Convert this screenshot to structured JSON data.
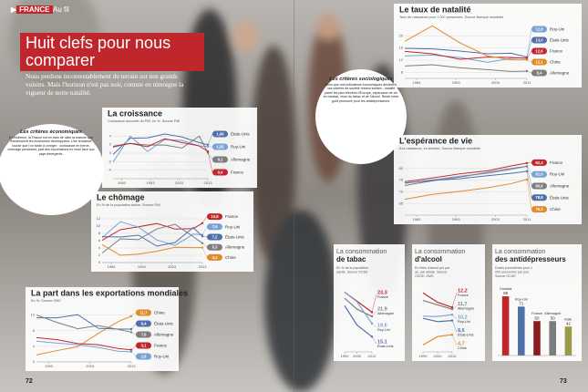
{
  "header": {
    "kicker": "FRANCE",
    "section": "Au fil",
    "title": "Huit clefs pour nous comparer",
    "intro": "Nous perdons incontestablement du terrain sur nos grands voisins. Mais l'horizon n'est pas noir, comme en témoigne la vigueur de notre natalité."
  },
  "sidebars": [
    {
      "title": "Les critères économiques",
      "body": "A l'évidence, la France est en train de rater la marche que franchissent les économies développées. Une tendance lourde que l'on tarde à corriger : croissance en berne, chômage persistant, part des exportations en recul face aux pays émergents."
    },
    {
      "title": "Les critères sociologiques",
      "body": "Alors que nos indicateurs économiques déclinent, nos critères de société restent solides : natalité parmi les plus élevées d'Europe, espérance de vie en hausse, recul du tabac et de l'alcool. Reste notre goût prononcé pour les antidépresseurs."
    }
  ],
  "footer": {
    "left_page": "72",
    "right_page": "73"
  },
  "chart_data": [
    {
      "type": "line",
      "title": "La croissance",
      "subtitle": "Croissance annuelle du PIB, en %. Source FMI",
      "x": [
        1980,
        1986,
        1992,
        1998,
        2004,
        2010,
        2013
      ],
      "xlim": [
        1980,
        2013
      ],
      "xticks": [
        1983,
        1993,
        2003,
        2013
      ],
      "ylim": [
        -6,
        6
      ],
      "yticks": [
        -4,
        -2,
        0,
        2,
        4
      ],
      "grid": true,
      "series": [
        {
          "name": "États-Unis",
          "color": "#4f6fa8",
          "values": [
            -0.3,
            3.5,
            3.6,
            4.5,
            3.8,
            2.5,
            1.96
          ],
          "value_labels": [
            null,
            null,
            null,
            null,
            null,
            null,
            "1,96"
          ]
        },
        {
          "name": "Roy-Uni",
          "color": "#7aa0d6",
          "values": [
            -2.1,
            4.0,
            0.4,
            3.2,
            3.0,
            1.7,
            1.55
          ],
          "value_labels": [
            null,
            null,
            null,
            null,
            null,
            null,
            "1,55"
          ]
        },
        {
          "name": "Allemagne",
          "color": "#7d7d7d",
          "values": [
            1.4,
            2.3,
            1.9,
            1.9,
            1.2,
            4.0,
            0.1
          ],
          "value_labels": [
            null,
            null,
            null,
            null,
            null,
            null,
            "0,1"
          ]
        },
        {
          "name": "France",
          "color": "#c0272d",
          "values": [
            1.6,
            2.3,
            1.5,
            3.4,
            2.5,
            1.7,
            0.4
          ],
          "value_labels": [
            null,
            null,
            null,
            null,
            null,
            null,
            "0,4"
          ]
        }
      ]
    },
    {
      "type": "line",
      "title": "Le chômage",
      "subtitle": "En % de la population active. Source FMI",
      "x": [
        1980,
        1986,
        1992,
        1998,
        2004,
        2010,
        2013
      ],
      "xlim": [
        1980,
        2013
      ],
      "xticks": [
        1983,
        1993,
        2003,
        2013
      ],
      "ylim": [
        0,
        14
      ],
      "yticks": [
        0,
        2,
        4,
        6,
        8,
        10,
        12
      ],
      "grid": true,
      "series": [
        {
          "name": "France",
          "color": "#c0272d",
          "values": [
            6.1,
            9.0,
            9.8,
            10.7,
            9.2,
            9.3,
            10.8
          ],
          "value_labels": [
            null,
            null,
            null,
            null,
            null,
            null,
            "10,8"
          ]
        },
        {
          "name": "Roy-Uni",
          "color": "#7aa0d6",
          "values": [
            6.8,
            11.2,
            9.7,
            6.2,
            4.7,
            7.8,
            7.6
          ],
          "value_labels": [
            null,
            null,
            null,
            null,
            null,
            null,
            "7,6"
          ]
        },
        {
          "name": "États-Unis",
          "color": "#4f6fa8",
          "values": [
            7.1,
            7.0,
            7.5,
            4.5,
            5.5,
            9.6,
            7.2
          ],
          "value_labels": [
            null,
            null,
            null,
            null,
            null,
            null,
            "7,2"
          ]
        },
        {
          "name": "Allemagne",
          "color": "#7d7d7d",
          "values": [
            2.6,
            6.5,
            6.3,
            9.2,
            10.5,
            7.1,
            5.3
          ],
          "value_labels": [
            null,
            null,
            null,
            null,
            null,
            null,
            "5,3"
          ]
        },
        {
          "name": "Chine",
          "color": "#e08a2c",
          "values": [
            4.9,
            2.0,
            2.3,
            3.1,
            4.2,
            4.1,
            4.1
          ],
          "value_labels": [
            null,
            null,
            null,
            null,
            null,
            null,
            "4,1"
          ]
        }
      ]
    },
    {
      "type": "line",
      "title": "La part dans les exportations mondiales",
      "subtitle": "En %. Source OMC",
      "x": [
        1990,
        1995,
        2000,
        2005,
        2010,
        2013
      ],
      "xlim": [
        1990,
        2013
      ],
      "xticks": [
        1993,
        2003,
        2013
      ],
      "ylim": [
        0,
        14
      ],
      "yticks": [
        0,
        4,
        8,
        12
      ],
      "grid": true,
      "series": [
        {
          "name": "Chine",
          "color": "#e08a2c",
          "values": [
            1.8,
            2.9,
            3.9,
            7.3,
            10.4,
            11.7
          ],
          "value_labels": [
            null,
            null,
            null,
            null,
            null,
            "11,7"
          ]
        },
        {
          "name": "États-Unis",
          "color": "#4f6fa8",
          "values": [
            11.3,
            11.3,
            12.1,
            8.6,
            8.4,
            8.4
          ],
          "value_labels": [
            null,
            null,
            null,
            null,
            null,
            "8,4"
          ]
        },
        {
          "name": "Allemagne",
          "color": "#7d7d7d",
          "values": [
            12.0,
            10.1,
            8.5,
            9.3,
            8.3,
            7.6
          ],
          "value_labels": [
            null,
            null,
            null,
            null,
            null,
            "7,6"
          ]
        },
        {
          "name": "France",
          "color": "#c0272d",
          "values": [
            6.2,
            5.7,
            4.7,
            4.4,
            3.4,
            3.1
          ],
          "value_labels": [
            null,
            null,
            null,
            null,
            null,
            "3,1"
          ]
        },
        {
          "name": "Roy-Uni",
          "color": "#7aa0d6",
          "values": [
            5.3,
            4.8,
            4.4,
            3.7,
            2.7,
            2.6
          ],
          "value_labels": [
            null,
            null,
            null,
            null,
            null,
            "2,6"
          ]
        }
      ]
    },
    {
      "type": "line",
      "title": "Le taux de natalité",
      "subtitle": "Taux de naissance pour 1 000 personnes. Source Banque mondiale",
      "x": [
        1980,
        1987,
        1994,
        2001,
        2007,
        2011
      ],
      "xlim": [
        1980,
        2011
      ],
      "xticks": [
        1983,
        1993,
        2003,
        2011
      ],
      "ylim": [
        6,
        24
      ],
      "yticks": [
        8,
        12,
        16,
        20
      ],
      "grid": true,
      "series": [
        {
          "name": "Roy-Uni",
          "color": "#7aa0d6",
          "values": [
            13.4,
            13.7,
            12.9,
            11.3,
            12.6,
            12.8
          ],
          "value_labels": [
            null,
            null,
            null,
            null,
            null,
            "12,8"
          ]
        },
        {
          "name": "États-Unis",
          "color": "#4f6fa8",
          "values": [
            15.9,
            15.7,
            15.0,
            14.1,
            14.3,
            13.0
          ],
          "value_labels": [
            null,
            null,
            null,
            null,
            null,
            "13,0"
          ]
        },
        {
          "name": "France",
          "color": "#c0272d",
          "values": [
            14.9,
            14.1,
            12.3,
            13.0,
            12.9,
            12.6
          ],
          "value_labels": [
            null,
            null,
            null,
            null,
            null,
            "12,6"
          ]
        },
        {
          "name": "Chine",
          "color": "#e08a2c",
          "values": [
            18.2,
            23.3,
            17.7,
            13.4,
            12.1,
            12.1
          ],
          "value_labels": [
            null,
            null,
            null,
            null,
            null,
            "12,1"
          ]
        },
        {
          "name": "Allemagne",
          "color": "#7d7d7d",
          "values": [
            10.1,
            10.5,
            9.5,
            8.9,
            8.3,
            8.4
          ],
          "value_labels": [
            null,
            null,
            null,
            null,
            null,
            "8,4"
          ]
        }
      ]
    },
    {
      "type": "line",
      "title": "L'espérance de vie",
      "subtitle": "A la naissance, en années. Source Banque mondiale",
      "x": [
        1980,
        1987,
        1994,
        2001,
        2007,
        2011
      ],
      "xlim": [
        1980,
        2011
      ],
      "xticks": [
        1983,
        1993,
        2003,
        2011
      ],
      "ylim": [
        60,
        85
      ],
      "yticks": [
        65,
        70,
        75,
        80
      ],
      "grid": true,
      "series": [
        {
          "name": "France",
          "color": "#c0272d",
          "values": [
            74.3,
            75.9,
            77.7,
            79.0,
            81.1,
            82.3
          ],
          "value_labels": [
            null,
            null,
            null,
            null,
            null,
            "82,3"
          ]
        },
        {
          "name": "Roy-Uni",
          "color": "#7aa0d6",
          "values": [
            73.7,
            75.1,
            76.7,
            77.9,
            79.6,
            81.0
          ],
          "value_labels": [
            null,
            null,
            null,
            null,
            null,
            "81,0"
          ]
        },
        {
          "name": "Allemagne",
          "color": "#7d7d7d",
          "values": [
            72.7,
            74.7,
            76.3,
            78.3,
            80.0,
            80.9
          ],
          "value_labels": [
            null,
            null,
            null,
            null,
            null,
            "80,9"
          ]
        },
        {
          "name": "États-Unis",
          "color": "#4f6fa8",
          "values": [
            73.7,
            74.9,
            75.6,
            76.9,
            77.9,
            78.8
          ],
          "value_labels": [
            null,
            null,
            null,
            null,
            null,
            "78,8"
          ]
        },
        {
          "name": "Chine",
          "color": "#e08a2c",
          "values": [
            66.8,
            68.9,
            70.2,
            71.7,
            73.5,
            75.3
          ],
          "value_labels": [
            null,
            null,
            null,
            null,
            null,
            "75,3"
          ]
        }
      ]
    },
    {
      "type": "line",
      "title": "La consommation",
      "title_emphasis": "de tabac",
      "subtitle": "En % de la population adulte. Source OCDE",
      "x": [
        1990,
        2000,
        2012
      ],
      "xlim": [
        1990,
        2012
      ],
      "xticks": [
        1990,
        2000,
        2012
      ],
      "ylim": [
        10,
        32
      ],
      "yticks": [],
      "grid": false,
      "series": [
        {
          "name": "France",
          "color": "#c0272d",
          "values": [
            30,
            27,
            23.3
          ],
          "value_labels": [
            null,
            null,
            "23,3"
          ]
        },
        {
          "name": "Allemagne",
          "color": "#7d7d7d",
          "values": [
            28,
            24.3,
            21.9
          ],
          "value_labels": [
            null,
            null,
            "21,9"
          ]
        },
        {
          "name": "Roy-Uni",
          "color": "#7aa0d6",
          "values": [
            30,
            26.8,
            19.5
          ],
          "value_labels": [
            null,
            null,
            "19,5"
          ]
        },
        {
          "name": "États-Unis",
          "color": "#4f6fa8",
          "values": [
            25.5,
            19.0,
            15.1
          ],
          "value_labels": [
            null,
            null,
            "15,1"
          ]
        }
      ]
    },
    {
      "type": "line",
      "title": "La consommation",
      "title_emphasis": "d'alcool",
      "subtitle": "En litres d'alcool pur par an, par adulte. Source OCDE, OMS",
      "x": [
        1990,
        2000,
        2010
      ],
      "xlim": [
        1990,
        2010
      ],
      "xticks": [
        1990,
        2000,
        2010
      ],
      "ylim": [
        0,
        18
      ],
      "yticks": [],
      "grid": false,
      "series": [
        {
          "name": "France",
          "color": "#c0272d",
          "values": [
            16.2,
            13.6,
            12.2
          ],
          "value_labels": [
            null,
            null,
            "12,2"
          ]
        },
        {
          "name": "Allemagne",
          "color": "#7d7d7d",
          "values": [
            14.1,
            12.9,
            11.7
          ],
          "value_labels": [
            null,
            null,
            "11,7"
          ]
        },
        {
          "name": "Roy-Uni",
          "color": "#7aa0d6",
          "values": [
            9.8,
            9.7,
            10.2
          ],
          "value_labels": [
            null,
            null,
            "10,2"
          ]
        },
        {
          "name": "États-Unis",
          "color": "#4f6fa8",
          "values": [
            9.2,
            8.3,
            8.6
          ],
          "value_labels": [
            null,
            null,
            "8,6"
          ]
        },
        {
          "name": "Chine",
          "color": "#e08a2c",
          "values": [
            1.9,
            4.2,
            4.7
          ],
          "value_labels": [
            null,
            null,
            "4,7"
          ]
        }
      ]
    },
    {
      "type": "bar",
      "title": "La consommation",
      "title_emphasis": "des antidépresseurs",
      "subtitle": "Doses journalières pour 1 000 personnes par jour. Source OCDE",
      "categories": [
        "Canada",
        "Roy-Uni",
        "France",
        "Allemagne",
        "Italie"
      ],
      "values": [
        86,
        71,
        50,
        50,
        42
      ],
      "colors": [
        "#c0272d",
        "#4f6fa8",
        "#8a1c20",
        "#7d7d7d",
        "#9a9a4a"
      ],
      "ylim": [
        0,
        90
      ]
    }
  ]
}
